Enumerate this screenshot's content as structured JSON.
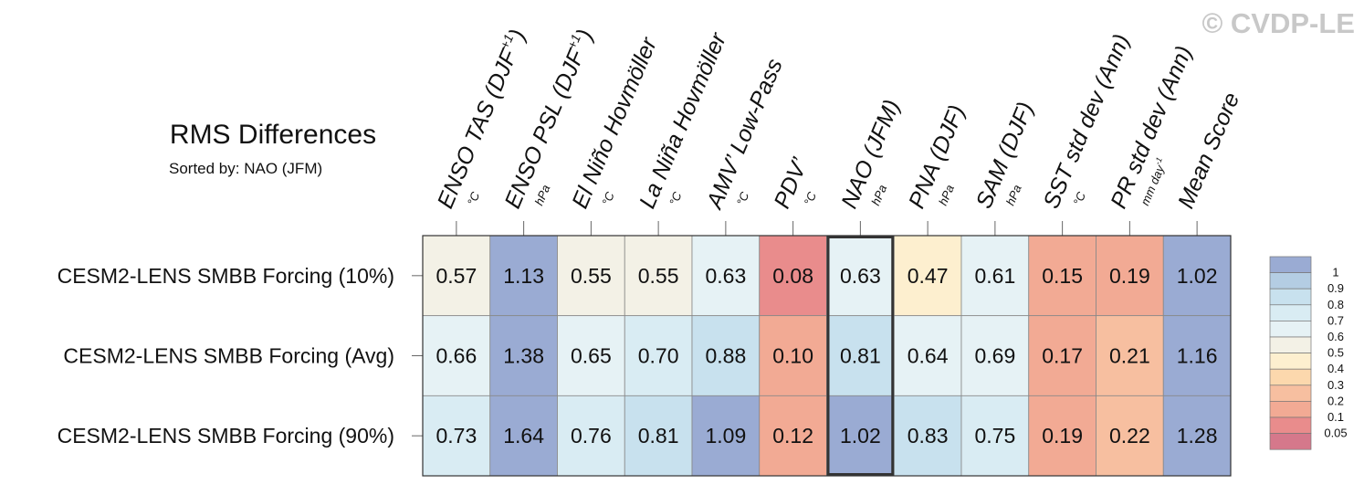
{
  "watermark": "© CVDP-LE",
  "chart_data": {
    "type": "heatmap",
    "title": "RMS Differences",
    "subtitle": "Sorted by: NAO (JFM)",
    "highlight_column": "NAO (JFM)",
    "columns": [
      {
        "label": "ENSO TAS (DJF",
        "sup": "+1",
        "label_end": ")",
        "unit": "°C"
      },
      {
        "label": "ENSO PSL (DJF",
        "sup": "+1",
        "label_end": ")",
        "unit": "hPa"
      },
      {
        "label": "El Niño Hovmöller",
        "unit": "°C"
      },
      {
        "label": "La Niña Hovmöller",
        "unit": "°C"
      },
      {
        "label": "AMV’ Low-Pass",
        "unit": "°C"
      },
      {
        "label": "PDV’",
        "unit": "°C"
      },
      {
        "label": "NAO (JFM)",
        "unit": "hPa"
      },
      {
        "label": "PNA (DJF)",
        "unit": "hPa"
      },
      {
        "label": "SAM (DJF)",
        "unit": "hPa"
      },
      {
        "label": "SST std dev (Ann)",
        "unit": "°C"
      },
      {
        "label": "PR std dev (Ann)",
        "unit": "mm day",
        "unit_sup": "-1"
      },
      {
        "label": "Mean Score",
        "unit": ""
      }
    ],
    "rows": [
      {
        "label": "CESM2-LENS SMBB Forcing (10%)",
        "values": [
          "0.57",
          "1.13",
          "0.55",
          "0.55",
          "0.63",
          "0.08",
          "0.63",
          "0.47",
          "0.61",
          "0.15",
          "0.19",
          "1.02"
        ]
      },
      {
        "label": "CESM2-LENS SMBB Forcing (Avg)",
        "values": [
          "0.66",
          "1.38",
          "0.65",
          "0.70",
          "0.88",
          "0.10",
          "0.81",
          "0.64",
          "0.69",
          "0.17",
          "0.21",
          "1.16"
        ]
      },
      {
        "label": "CESM2-LENS SMBB Forcing (90%)",
        "values": [
          "0.73",
          "1.64",
          "0.76",
          "0.81",
          "1.09",
          "0.12",
          "1.02",
          "0.83",
          "0.75",
          "0.19",
          "0.22",
          "1.28"
        ]
      }
    ],
    "colorbar": {
      "labels": [
        "1",
        "0.9",
        "0.8",
        "0.7",
        "0.6",
        "0.5",
        "0.4",
        "0.3",
        "0.2",
        "0.1",
        "0.05"
      ],
      "colors": [
        "#9aabd3",
        "#b4cde3",
        "#c8e1ee",
        "#d9ecf3",
        "#e6f2f5",
        "#f3f1e6",
        "#fdefcf",
        "#fcd8ad",
        "#f7bfa0",
        "#f2aa94",
        "#e98c8c",
        "#d5788b"
      ]
    }
  }
}
